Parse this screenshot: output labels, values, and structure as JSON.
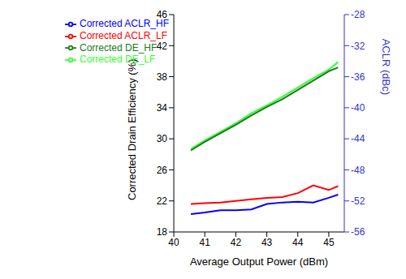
{
  "chart_data": {
    "type": "line",
    "x_label": "Average Output Power (dBm)",
    "y_label": "Corrected Drain Efficiency (%)",
    "y2_label": "ACLR (dBc)",
    "x": [
      40.55,
      41,
      41.5,
      42,
      42.5,
      43,
      43.5,
      44,
      44.5,
      45,
      45.3
    ],
    "xlim": [
      40,
      45.5
    ],
    "xticks": [
      40,
      41,
      42,
      43,
      44,
      45
    ],
    "ylim": [
      18,
      46
    ],
    "yticks": [
      18,
      22,
      26,
      30,
      34,
      38,
      42,
      46
    ],
    "y2lim": [
      -56,
      -28
    ],
    "y2ticks": [
      -56,
      -52,
      -48,
      -44,
      -40,
      -36,
      -32,
      -28
    ],
    "grid": false,
    "legend": "upper left",
    "marker": "none",
    "line_style": "solid",
    "series": [
      {
        "name": "Corrected DE_LF",
        "color": "#33ff33",
        "values": [
          28.7,
          29.8,
          30.9,
          32.0,
          33.3,
          34.3,
          35.4,
          36.6,
          37.8,
          38.9,
          39.9
        ]
      },
      {
        "name": "Corrected DE_HF",
        "color": "#1a7a1a",
        "values": [
          28.5,
          29.6,
          30.7,
          31.8,
          33.0,
          34.1,
          35.1,
          36.3,
          37.5,
          38.7,
          39.2
        ]
      },
      {
        "name": "Corrected ACLR_LF",
        "color": "#ff0000",
        "axis": "y2",
        "values": [
          -52.4,
          -52.3,
          -52.2,
          -52.0,
          -51.8,
          -51.6,
          -51.5,
          -51.0,
          -50.0,
          -50.6,
          -50.1
        ]
      },
      {
        "name": "Corrected ACLR_HF",
        "color": "#0000ff",
        "axis": "y2",
        "values": [
          -53.7,
          -53.5,
          -53.2,
          -53.2,
          -53.1,
          -52.4,
          -52.2,
          -52.1,
          -52.2,
          -51.6,
          -51.2
        ]
      }
    ]
  }
}
